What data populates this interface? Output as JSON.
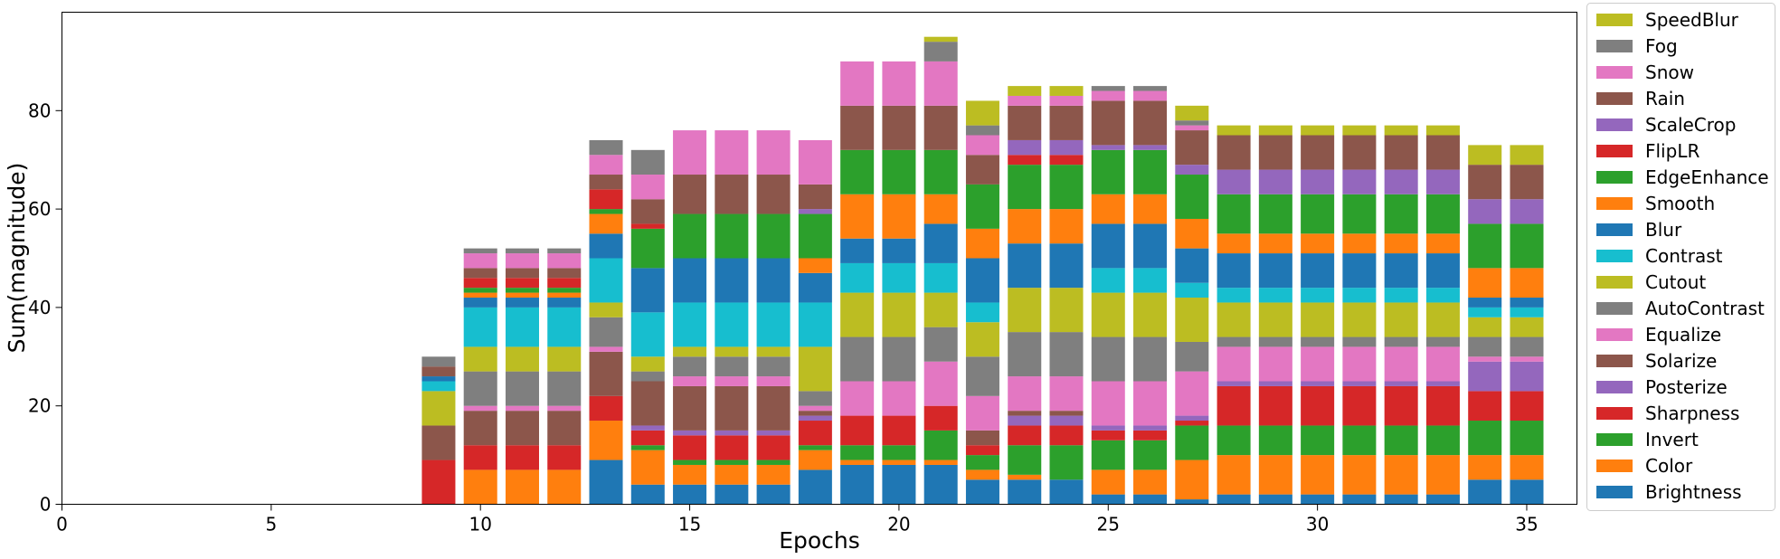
{
  "chart_data": {
    "type": "bar",
    "stacked": true,
    "xlabel": "Epochs",
    "ylabel": "Sum(magnitude)",
    "xlim": [
      0,
      36.2
    ],
    "ylim": [
      0,
      100
    ],
    "xticks": [
      0,
      5,
      10,
      15,
      20,
      25,
      30,
      35
    ],
    "yticks": [
      0,
      20,
      40,
      60,
      80
    ],
    "legend_position": "right, outside plot",
    "x": [
      9,
      10,
      11,
      12,
      13,
      14,
      15,
      16,
      17,
      18,
      19,
      20,
      21,
      22,
      23,
      24,
      25,
      26,
      27,
      28,
      29,
      30,
      31,
      32,
      33,
      34,
      35
    ],
    "series": [
      {
        "name": "Brightness",
        "color": "#1f77b4",
        "values": [
          0,
          0,
          0,
          0,
          9,
          4,
          4,
          4,
          4,
          7,
          8,
          8,
          8,
          5,
          5,
          5,
          2,
          2,
          1,
          2,
          2,
          2,
          2,
          2,
          2,
          5,
          5
        ]
      },
      {
        "name": "Color",
        "color": "#ff7f0e",
        "values": [
          0,
          7,
          7,
          7,
          8,
          7,
          4,
          4,
          4,
          4,
          1,
          1,
          1,
          2,
          1,
          0,
          5,
          5,
          8,
          8,
          8,
          8,
          8,
          8,
          8,
          5,
          5
        ]
      },
      {
        "name": "Invert",
        "color": "#2ca02c",
        "values": [
          0,
          0,
          0,
          0,
          0,
          1,
          1,
          1,
          1,
          1,
          3,
          3,
          6,
          3,
          6,
          7,
          6,
          6,
          7,
          6,
          6,
          6,
          6,
          6,
          6,
          7,
          7
        ]
      },
      {
        "name": "Sharpness",
        "color": "#d62728",
        "values": [
          9,
          5,
          5,
          5,
          5,
          3,
          5,
          5,
          5,
          5,
          6,
          6,
          5,
          2,
          4,
          4,
          2,
          2,
          1,
          8,
          8,
          8,
          8,
          8,
          8,
          6,
          6
        ]
      },
      {
        "name": "Posterize",
        "color": "#9467bd",
        "values": [
          0,
          0,
          0,
          0,
          0,
          1,
          1,
          1,
          1,
          1,
          0,
          0,
          0,
          0,
          2,
          2,
          1,
          1,
          1,
          1,
          1,
          1,
          1,
          1,
          1,
          6,
          6
        ]
      },
      {
        "name": "Solarize",
        "color": "#8c564b",
        "values": [
          7,
          7,
          7,
          7,
          9,
          9,
          9,
          9,
          9,
          1,
          0,
          0,
          0,
          3,
          1,
          1,
          0,
          0,
          0,
          0,
          0,
          0,
          0,
          0,
          0,
          0,
          0
        ]
      },
      {
        "name": "Equalize",
        "color": "#e377c2",
        "values": [
          0,
          1,
          1,
          1,
          1,
          0,
          2,
          2,
          2,
          1,
          7,
          7,
          9,
          7,
          7,
          7,
          9,
          9,
          9,
          7,
          7,
          7,
          7,
          7,
          7,
          1,
          1
        ]
      },
      {
        "name": "AutoContrast",
        "color": "#7f7f7f",
        "values": [
          0,
          7,
          7,
          7,
          6,
          2,
          4,
          4,
          4,
          3,
          9,
          9,
          7,
          8,
          9,
          9,
          9,
          9,
          6,
          2,
          2,
          2,
          2,
          2,
          2,
          4,
          4
        ]
      },
      {
        "name": "Cutout",
        "color": "#bcbd22",
        "values": [
          7,
          5,
          5,
          5,
          3,
          3,
          2,
          2,
          2,
          9,
          9,
          9,
          7,
          7,
          9,
          9,
          9,
          9,
          9,
          7,
          7,
          7,
          7,
          7,
          7,
          4,
          4
        ]
      },
      {
        "name": "Contrast",
        "color": "#17becf",
        "values": [
          2,
          8,
          8,
          8,
          9,
          9,
          9,
          9,
          9,
          9,
          6,
          6,
          6,
          4,
          0,
          0,
          5,
          5,
          3,
          3,
          3,
          3,
          3,
          3,
          3,
          2,
          2
        ]
      },
      {
        "name": "Blur",
        "color": "#1f77b4",
        "values": [
          1,
          2,
          2,
          2,
          5,
          9,
          9,
          9,
          9,
          6,
          5,
          5,
          8,
          9,
          9,
          9,
          9,
          9,
          7,
          7,
          7,
          7,
          7,
          7,
          7,
          2,
          2
        ]
      },
      {
        "name": "Smooth",
        "color": "#ff7f0e",
        "values": [
          0,
          1,
          1,
          1,
          4,
          0,
          0,
          0,
          0,
          3,
          9,
          9,
          6,
          6,
          7,
          7,
          6,
          6,
          6,
          4,
          4,
          4,
          4,
          4,
          4,
          6,
          6
        ]
      },
      {
        "name": "EdgeEnhance",
        "color": "#2ca02c",
        "values": [
          0,
          1,
          1,
          1,
          1,
          8,
          9,
          9,
          9,
          9,
          9,
          9,
          9,
          9,
          9,
          9,
          9,
          9,
          9,
          8,
          8,
          8,
          8,
          8,
          8,
          9,
          9
        ]
      },
      {
        "name": "FlipLR",
        "color": "#d62728",
        "values": [
          0,
          2,
          2,
          2,
          4,
          1,
          0,
          0,
          0,
          0,
          0,
          0,
          0,
          0,
          2,
          2,
          0,
          0,
          0,
          0,
          0,
          0,
          0,
          0,
          0,
          0,
          0
        ]
      },
      {
        "name": "ScaleCrop",
        "color": "#9467bd",
        "values": [
          0,
          0,
          0,
          0,
          0,
          0,
          0,
          0,
          0,
          1,
          0,
          0,
          0,
          0,
          3,
          3,
          1,
          1,
          2,
          5,
          5,
          5,
          5,
          5,
          5,
          5,
          5
        ]
      },
      {
        "name": "Rain",
        "color": "#8c564b",
        "values": [
          2,
          2,
          2,
          2,
          3,
          5,
          8,
          8,
          8,
          5,
          9,
          9,
          9,
          6,
          7,
          7,
          9,
          9,
          7,
          7,
          7,
          7,
          7,
          7,
          7,
          7,
          7
        ]
      },
      {
        "name": "Snow",
        "color": "#e377c2",
        "values": [
          0,
          3,
          3,
          3,
          4,
          5,
          9,
          9,
          9,
          9,
          9,
          9,
          9,
          4,
          2,
          2,
          2,
          2,
          1,
          0,
          0,
          0,
          0,
          0,
          0,
          0,
          0
        ]
      },
      {
        "name": "Fog",
        "color": "#7f7f7f",
        "values": [
          2,
          1,
          1,
          1,
          3,
          5,
          0,
          0,
          0,
          0,
          0,
          0,
          4,
          2,
          0,
          0,
          1,
          1,
          1,
          0,
          0,
          0,
          0,
          0,
          0,
          0,
          0
        ]
      },
      {
        "name": "SpeedBlur",
        "color": "#bcbd22",
        "values": [
          0,
          0,
          0,
          0,
          0,
          0,
          0,
          0,
          0,
          0,
          0,
          0,
          1,
          5,
          2,
          2,
          0,
          0,
          3,
          2,
          2,
          2,
          2,
          2,
          2,
          4,
          4
        ]
      }
    ]
  }
}
